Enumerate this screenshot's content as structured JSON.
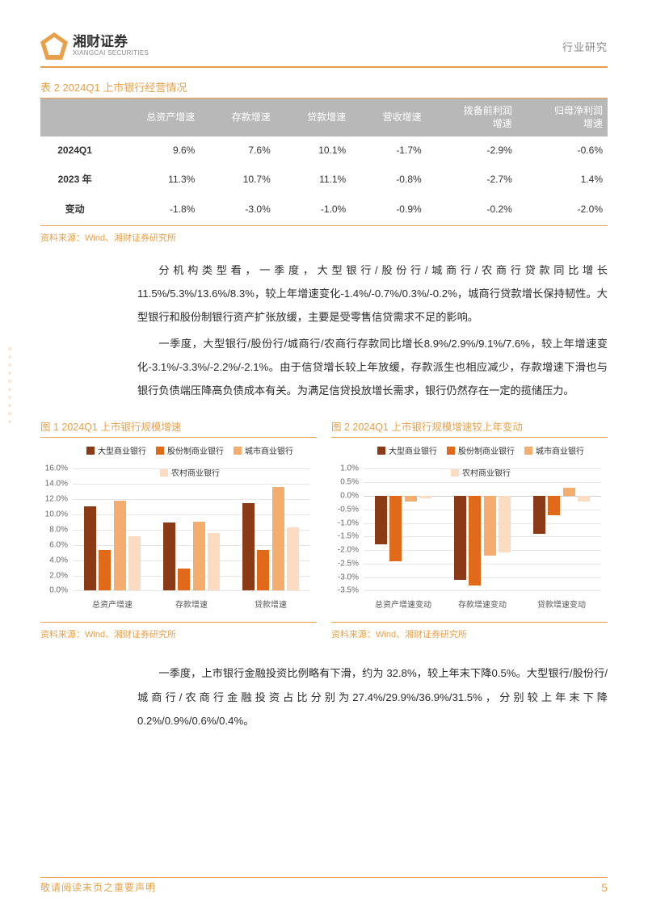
{
  "header": {
    "logo_cn": "湘财证券",
    "logo_en": "XIANGCAI SECURITIES",
    "right": "行业研究"
  },
  "table": {
    "title": "表 2 2024Q1 上市银行经营情况",
    "columns": [
      "",
      "总资产增速",
      "存款增速",
      "贷款增速",
      "营收增速",
      "拨备前利润增速",
      "归母净利润增速"
    ],
    "rows": [
      [
        "2024Q1",
        "9.6%",
        "7.6%",
        "10.1%",
        "-1.7%",
        "-2.9%",
        "-0.6%"
      ],
      [
        "2023 年",
        "11.3%",
        "10.7%",
        "11.1%",
        "-0.8%",
        "-2.7%",
        "1.4%"
      ],
      [
        "变动",
        "-1.8%",
        "-3.0%",
        "-1.0%",
        "-0.9%",
        "-0.2%",
        "-2.0%"
      ]
    ],
    "source": "资料来源：Wind、湘财证券研究所"
  },
  "para1": "分机构类型看，一季度，大型银行/股份行/城商行/农商行贷款同比增长11.5%/5.3%/13.6%/8.3%，较上年增速变化-1.4%/-0.7%/0.3%/-0.2%，城商行贷款增长保持韧性。大型银行和股份制银行资产扩张放缓，主要是受零售信贷需求不足的影响。",
  "para2": "一季度，大型银行/股份行/城商行/农商行存款同比增长8.9%/2.9%/9.1%/7.6%，较上年增速变化-3.1%/-3.3%/-2.2%/-2.1%。由于信贷增长较上年放缓，存款派生也相应减少，存款增速下滑也与银行负债端压降高负债成本有关。为满足信贷投放增长需求，银行仍然存在一定的揽储压力。",
  "para3": "一季度，上市银行金融投资比例略有下滑，约为 32.8%，较上年末下降0.5%。大型银行/股份行/城商行/农商行金融投资占比分别为27.4%/29.9%/36.9%/31.5%，分别较上年末下降 0.2%/0.9%/0.6%/0.4%。",
  "legend_labels": [
    "大型商业银行",
    "股份制商业银行",
    "城市商业银行",
    "农村商业银行"
  ],
  "series_colors": [
    "#8a3b16",
    "#e06a1a",
    "#f4ad6f",
    "#fcdcc0"
  ],
  "chart1": {
    "title": "图 1 2024Q1 上市银行规模增速",
    "ymin": 0.0,
    "ymax": 16.0,
    "ytick_step": 2.0,
    "categories": [
      "总资产增速",
      "存款增速",
      "贷款增速"
    ],
    "series": [
      {
        "name": "大型商业银行",
        "values": [
          11.1,
          8.9,
          11.5
        ]
      },
      {
        "name": "股份制商业银行",
        "values": [
          5.3,
          2.9,
          5.3
        ]
      },
      {
        "name": "城市商业银行",
        "values": [
          11.8,
          9.1,
          13.6
        ]
      },
      {
        "name": "农村商业银行",
        "values": [
          7.2,
          7.6,
          8.3
        ]
      }
    ],
    "source": "资料来源：Wind、湘财证券研究所"
  },
  "chart2": {
    "title": "图 2 2024Q1 上市银行规模增速较上年变动",
    "ymin": -3.5,
    "ymax": 1.0,
    "ytick_step": 0.5,
    "categories": [
      "总资产增速变动",
      "存款增速变动",
      "贷款增速变动"
    ],
    "series": [
      {
        "name": "大型商业银行",
        "values": [
          -1.8,
          -3.1,
          -1.4
        ]
      },
      {
        "name": "股份制商业银行",
        "values": [
          -2.4,
          -3.3,
          -0.7
        ]
      },
      {
        "name": "城市商业银行",
        "values": [
          -0.2,
          -2.2,
          0.3
        ]
      },
      {
        "name": "农村商业银行",
        "values": [
          -0.1,
          -2.1,
          -0.2
        ]
      }
    ],
    "source": "资料来源：Wind、湘财证券研究所"
  },
  "footer": {
    "left": "敬请阅读末页之重要声明",
    "page": "5"
  }
}
